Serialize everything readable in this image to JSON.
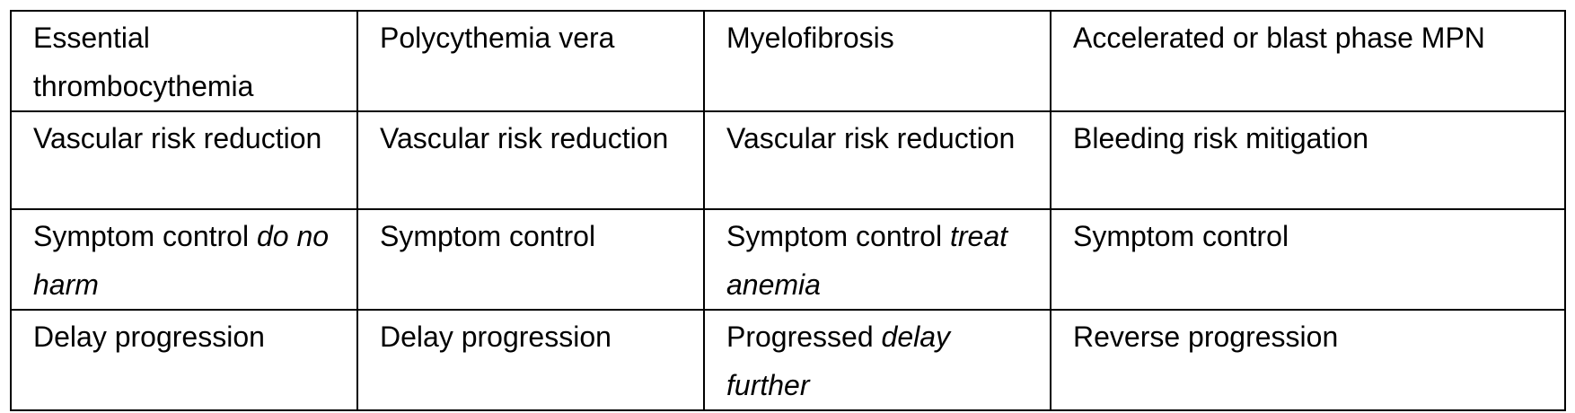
{
  "table": {
    "rows": [
      [
        {
          "text": "Essential thrombocythemia",
          "em": ""
        },
        {
          "text": "Polycythemia vera",
          "em": ""
        },
        {
          "text": "Myelofibrosis",
          "em": ""
        },
        {
          "text": "Accelerated or blast phase MPN",
          "em": ""
        }
      ],
      [
        {
          "text": "Vascular risk reduction",
          "em": ""
        },
        {
          "text": "Vascular risk reduction",
          "em": ""
        },
        {
          "text": "Vascular risk reduction",
          "em": ""
        },
        {
          "text": "Bleeding risk mitigation",
          "em": ""
        }
      ],
      [
        {
          "text": "Symptom control ",
          "em": "do no harm"
        },
        {
          "text": "Symptom control",
          "em": ""
        },
        {
          "text": "Symptom control ",
          "em": "treat anemia"
        },
        {
          "text": "Symptom control",
          "em": ""
        }
      ],
      [
        {
          "text": "Delay progression",
          "em": ""
        },
        {
          "text": "Delay progression",
          "em": ""
        },
        {
          "text": "Progressed ",
          "em": "delay further"
        },
        {
          "text": "Reverse progression",
          "em": ""
        }
      ]
    ]
  }
}
